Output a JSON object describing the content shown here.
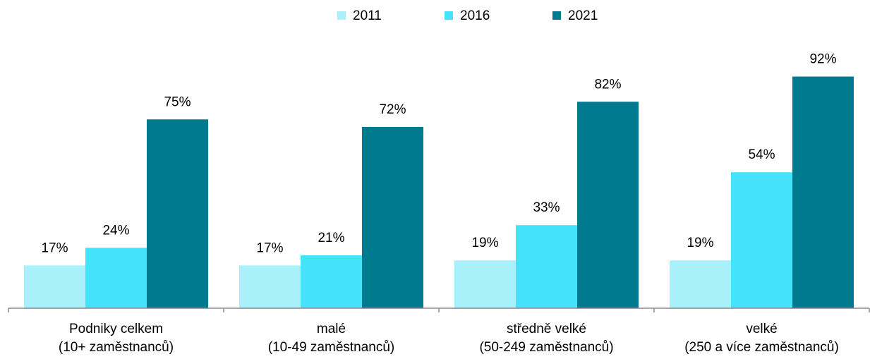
{
  "chart_data": {
    "type": "bar",
    "categories": [
      [
        "Podniky celkem",
        "(10+ zaměstnanců)"
      ],
      [
        "malé",
        "(10-49 zaměstnanců)"
      ],
      [
        "středně velké",
        "(50-249 zaměstnanců)"
      ],
      [
        "velké",
        "(250 a více zaměstnanců)"
      ]
    ],
    "series": [
      {
        "name": "2011",
        "color": "#a9f1fa",
        "values": [
          17,
          17,
          19,
          19
        ],
        "value_labels": [
          "17%",
          "17%",
          "19%",
          "19%"
        ]
      },
      {
        "name": "2016",
        "color": "#45e3fb",
        "values": [
          24,
          21,
          33,
          54
        ],
        "value_labels": [
          "24%",
          "21%",
          "33%",
          "54%"
        ]
      },
      {
        "name": "2021",
        "color": "#007a8e",
        "values": [
          75,
          72,
          82,
          92
        ],
        "value_labels": [
          "75%",
          "72%",
          "82%",
          "92%"
        ]
      }
    ],
    "ylim": [
      0,
      100
    ],
    "legend": "top"
  }
}
